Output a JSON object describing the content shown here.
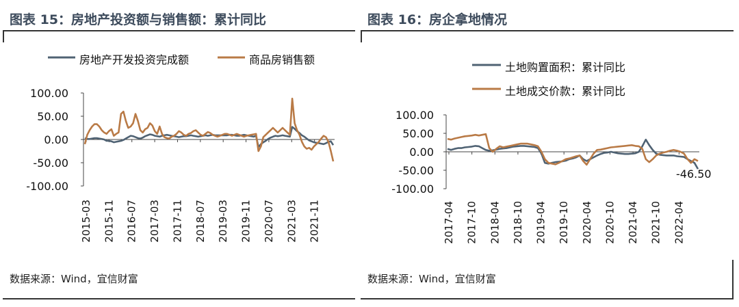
{
  "panels": [
    {
      "title": "图表 15：房地产投资额与销售额：累计同比",
      "source": "数据来源：Wind，宜信财富"
    },
    {
      "title": "图表 16：房企拿地情况",
      "source": "数据来源：Wind，宜信财富"
    }
  ],
  "colors": {
    "series_dark": "#4f6273",
    "series_orange": "#b97a46",
    "title": "#3d4b5c"
  },
  "chart_data": [
    {
      "type": "line",
      "title": "图表 15：房地产投资额与销售额：累计同比",
      "xlabel": "",
      "ylabel": "",
      "ylim": [
        -100,
        100
      ],
      "yticks": [
        "100.00",
        "50.00",
        "0.00",
        "-50.00",
        "-100.00"
      ],
      "yticks_values": [
        100,
        50,
        0,
        -50,
        -100
      ],
      "xticks": [
        "2015-03",
        "2015-11",
        "2016-07",
        "2017-03",
        "2017-11",
        "2018-07",
        "2019-03",
        "2019-11",
        "2020-07",
        "2021-03",
        "2021-11"
      ],
      "legend_placement": "top",
      "grid": false,
      "series": [
        {
          "name": "房地产开发投资完成额",
          "values": [
            3,
            1,
            1,
            2,
            3,
            3,
            2,
            1,
            0,
            -3,
            -3,
            -4,
            -6,
            -5,
            -4,
            -3,
            -1,
            2,
            5,
            8,
            7,
            5,
            3,
            2,
            4,
            7,
            9,
            11,
            10,
            8,
            7,
            6,
            8,
            9,
            10,
            9,
            8,
            7,
            6,
            5,
            6,
            7,
            7,
            8,
            9,
            8,
            7,
            6,
            7,
            8,
            9,
            8,
            9,
            10,
            9,
            9,
            9,
            9,
            9,
            9,
            10,
            10,
            9,
            8,
            8,
            9,
            10,
            9,
            8,
            7,
            6,
            8,
            -16,
            -10,
            -6,
            -3,
            1,
            4,
            6,
            8,
            7,
            8,
            9,
            8,
            7,
            6,
            27,
            23,
            18,
            14,
            9,
            6,
            2,
            -2,
            -4,
            -6,
            -7,
            -8,
            -9,
            -10,
            -8,
            -5,
            -4,
            -12
          ]
        },
        {
          "name": "商品房销售额",
          "values": [
            -10,
            10,
            20,
            28,
            33,
            33,
            28,
            20,
            15,
            12,
            18,
            22,
            8,
            12,
            15,
            55,
            60,
            40,
            25,
            28,
            35,
            55,
            40,
            20,
            15,
            22,
            25,
            35,
            30,
            18,
            12,
            28,
            12,
            5,
            3,
            2,
            6,
            8,
            12,
            18,
            15,
            10,
            8,
            12,
            14,
            18,
            20,
            15,
            10,
            8,
            12,
            16,
            14,
            10,
            8,
            6,
            8,
            10,
            12,
            12,
            10,
            8,
            10,
            12,
            10,
            8,
            6,
            8,
            9,
            10,
            11,
            12,
            -25,
            -15,
            5,
            10,
            15,
            20,
            25,
            20,
            15,
            20,
            25,
            20,
            15,
            10,
            88,
            35,
            20,
            10,
            -5,
            -15,
            -20,
            -18,
            -22,
            -15,
            -10,
            -5,
            2,
            8,
            5,
            -5,
            -25,
            -47
          ]
        }
      ]
    },
    {
      "type": "line",
      "title": "图表 16：房企拿地情况",
      "xlabel": "",
      "ylabel": "",
      "ylim": [
        -100,
        100
      ],
      "yticks": [
        "100.00",
        "50.00",
        "0.00",
        "-50.00",
        "-100.00"
      ],
      "yticks_values": [
        100,
        50,
        0,
        -50,
        -100
      ],
      "xticks": [
        "2017-04",
        "2017-10",
        "2018-04",
        "2018-10",
        "2019-04",
        "2019-10",
        "2020-04",
        "2020-10",
        "2021-04",
        "2021-10",
        "2022-04"
      ],
      "legend_placement": "top-left",
      "grid": false,
      "annotations": [
        {
          "text": "-46.50",
          "value": -46.5
        }
      ],
      "series": [
        {
          "name": "土地购置面积：累计同比",
          "values": [
            8,
            5,
            8,
            10,
            10,
            12,
            13,
            14,
            16,
            15,
            10,
            5,
            3,
            4,
            6,
            8,
            9,
            10,
            12,
            14,
            15,
            16,
            16,
            15,
            14,
            13,
            10,
            -5,
            -30,
            -32,
            -30,
            -28,
            -27,
            -26,
            -24,
            -20,
            -18,
            -15,
            -10,
            -20,
            -25,
            -20,
            -15,
            -10,
            -6,
            -3,
            -2,
            0,
            -2,
            -4,
            -5,
            -6,
            -6,
            -5,
            -4,
            0,
            15,
            33,
            18,
            5,
            -5,
            -8,
            -9,
            -10,
            -10,
            -10,
            -12,
            -13,
            -14,
            -20,
            -25,
            -30,
            -46.5
          ]
        },
        {
          "name": "土地成交价款：累计同比",
          "values": [
            35,
            33,
            36,
            38,
            40,
            42,
            43,
            44,
            46,
            44,
            46,
            48,
            10,
            0,
            8,
            15,
            12,
            14,
            16,
            18,
            20,
            22,
            22,
            22,
            20,
            18,
            15,
            0,
            -20,
            -30,
            -32,
            -34,
            -30,
            -25,
            -20,
            -18,
            -15,
            -12,
            -10,
            -25,
            -35,
            -20,
            -5,
            5,
            6,
            8,
            10,
            12,
            13,
            14,
            15,
            16,
            17,
            18,
            16,
            15,
            8,
            -20,
            -28,
            -20,
            -10,
            -5,
            -2,
            0,
            3,
            5,
            3,
            0,
            -5,
            -20,
            -30,
            -20,
            -25
          ]
        }
      ]
    }
  ]
}
